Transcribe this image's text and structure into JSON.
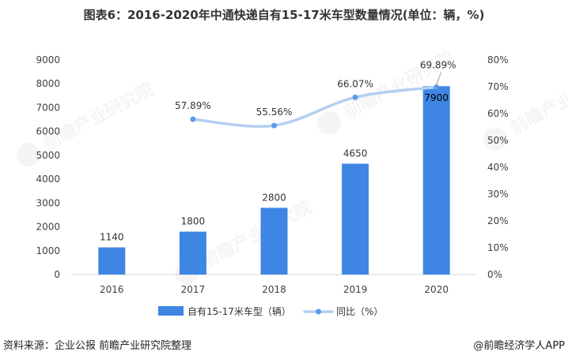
{
  "chart_data": {
    "type": "bar+line",
    "title": "图表6：2016-2020年中通快递自有15-17米车型数量情况(单位：辆，%)",
    "categories": [
      "2016",
      "2017",
      "2018",
      "2019",
      "2020"
    ],
    "series": [
      {
        "name": "自有15-17米车型（辆）",
        "kind": "bar",
        "axis": "left",
        "values": [
          1140,
          1800,
          2800,
          4650,
          7900
        ],
        "labels": [
          "1140",
          "1800",
          "2800",
          "4650",
          "7900"
        ],
        "color": "#3f86e4"
      },
      {
        "name": "同比（%）",
        "kind": "line",
        "axis": "right",
        "values": [
          null,
          57.89,
          55.56,
          66.07,
          69.89
        ],
        "labels": [
          "",
          "57.89%",
          "55.56%",
          "66.07%",
          "69.89%"
        ],
        "color": "#b3cff1",
        "marker_color": "#5b9bea"
      }
    ],
    "y_left": {
      "min": 0,
      "max": 9000,
      "step": 1000,
      "ticks": [
        "0",
        "1000",
        "2000",
        "3000",
        "4000",
        "5000",
        "6000",
        "7000",
        "8000",
        "9000"
      ]
    },
    "y_right": {
      "min": 0,
      "max": 80,
      "step": 10,
      "ticks": [
        "0%",
        "10%",
        "20%",
        "30%",
        "40%",
        "50%",
        "60%",
        "70%",
        "80%"
      ]
    },
    "legend_position": "bottom",
    "grid": false
  },
  "footer": {
    "source": "资料来源：企业公报 前瞻产业研究院整理",
    "credit": "@前瞻经济学人APP"
  },
  "watermark": "前瞻产业研究院"
}
